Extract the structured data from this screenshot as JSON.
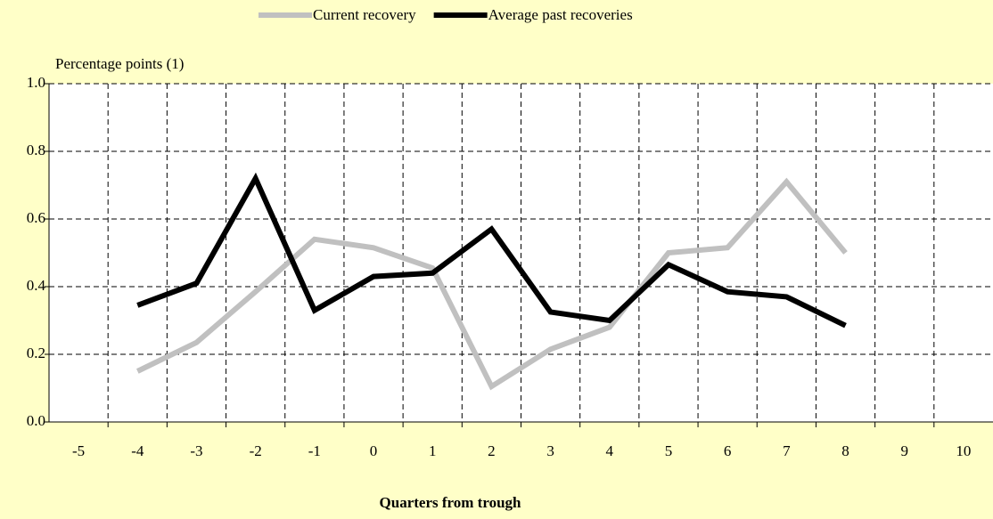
{
  "chart_data": {
    "type": "line",
    "y_label": "Percentage points (1)",
    "x_label": "Quarters from trough",
    "categories": [
      "-5",
      "-4",
      "-3",
      "-2",
      "-1",
      "0",
      "1",
      "2",
      "3",
      "4",
      "5",
      "6",
      "7",
      "8",
      "9",
      "10"
    ],
    "series": [
      {
        "name": "Current recovery",
        "color": "#c0c0c0",
        "values": [
          null,
          0.15,
          0.235,
          0.385,
          0.54,
          0.515,
          0.455,
          0.105,
          0.215,
          0.28,
          0.5,
          0.515,
          0.71,
          0.5,
          null,
          null
        ]
      },
      {
        "name": "Average past recoveries",
        "color": "#000000",
        "values": [
          null,
          0.345,
          0.41,
          0.72,
          0.33,
          0.43,
          0.44,
          0.57,
          0.325,
          0.3,
          0.465,
          0.385,
          0.37,
          0.285,
          null,
          null
        ]
      }
    ],
    "ylim": [
      0,
      1
    ],
    "yticks": [
      {
        "value": 0,
        "label": "0.0"
      },
      {
        "value": 0.2,
        "label": "0.2"
      },
      {
        "value": 0.4,
        "label": "0.4"
      },
      {
        "value": 0.6,
        "label": "0.6"
      },
      {
        "value": 0.8,
        "label": "0.8"
      },
      {
        "value": 1,
        "label": "1.0"
      }
    ],
    "grid": true,
    "legend": "top"
  }
}
